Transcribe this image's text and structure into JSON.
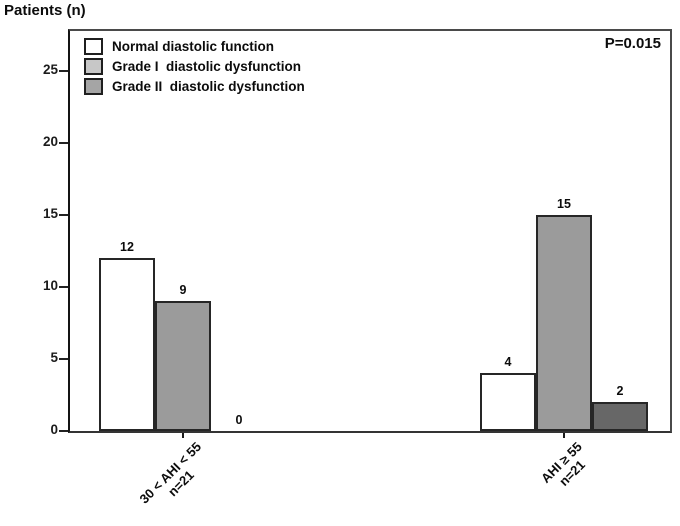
{
  "chart_data": {
    "type": "bar",
    "title": "Patients (n)",
    "ylabel": "Patients (n)",
    "xlabel": "",
    "p_value_annotation": "P=0.015",
    "ylim": [
      0,
      27.5
    ],
    "yticks": [
      0,
      5,
      10,
      15,
      20,
      25
    ],
    "grid": false,
    "legend_position": "upper-left",
    "axis_color": "#222222",
    "bar_border_color": "#262626",
    "categories": [
      {
        "label": "30 < AHI < 55",
        "sublabel": "n=21"
      },
      {
        "label": "AHI ≥ 55",
        "sublabel": "n=21"
      }
    ],
    "series": [
      {
        "key": "normal",
        "name": "Normal diastolic function",
        "values": [
          12,
          4
        ],
        "bar_fill": "#ffffff",
        "legend_fill": "#ffffff"
      },
      {
        "key": "grade1",
        "name": "Grade I  diastolic dysfunction",
        "values": [
          9,
          15
        ],
        "bar_fill": "#9b9b9b",
        "legend_fill": "#c7c7c7"
      },
      {
        "key": "grade2",
        "name": "Grade II  diastolic dysfunction",
        "values": [
          0,
          2
        ],
        "bar_fill": "#676767",
        "legend_fill": "#a5a5a5"
      }
    ]
  }
}
